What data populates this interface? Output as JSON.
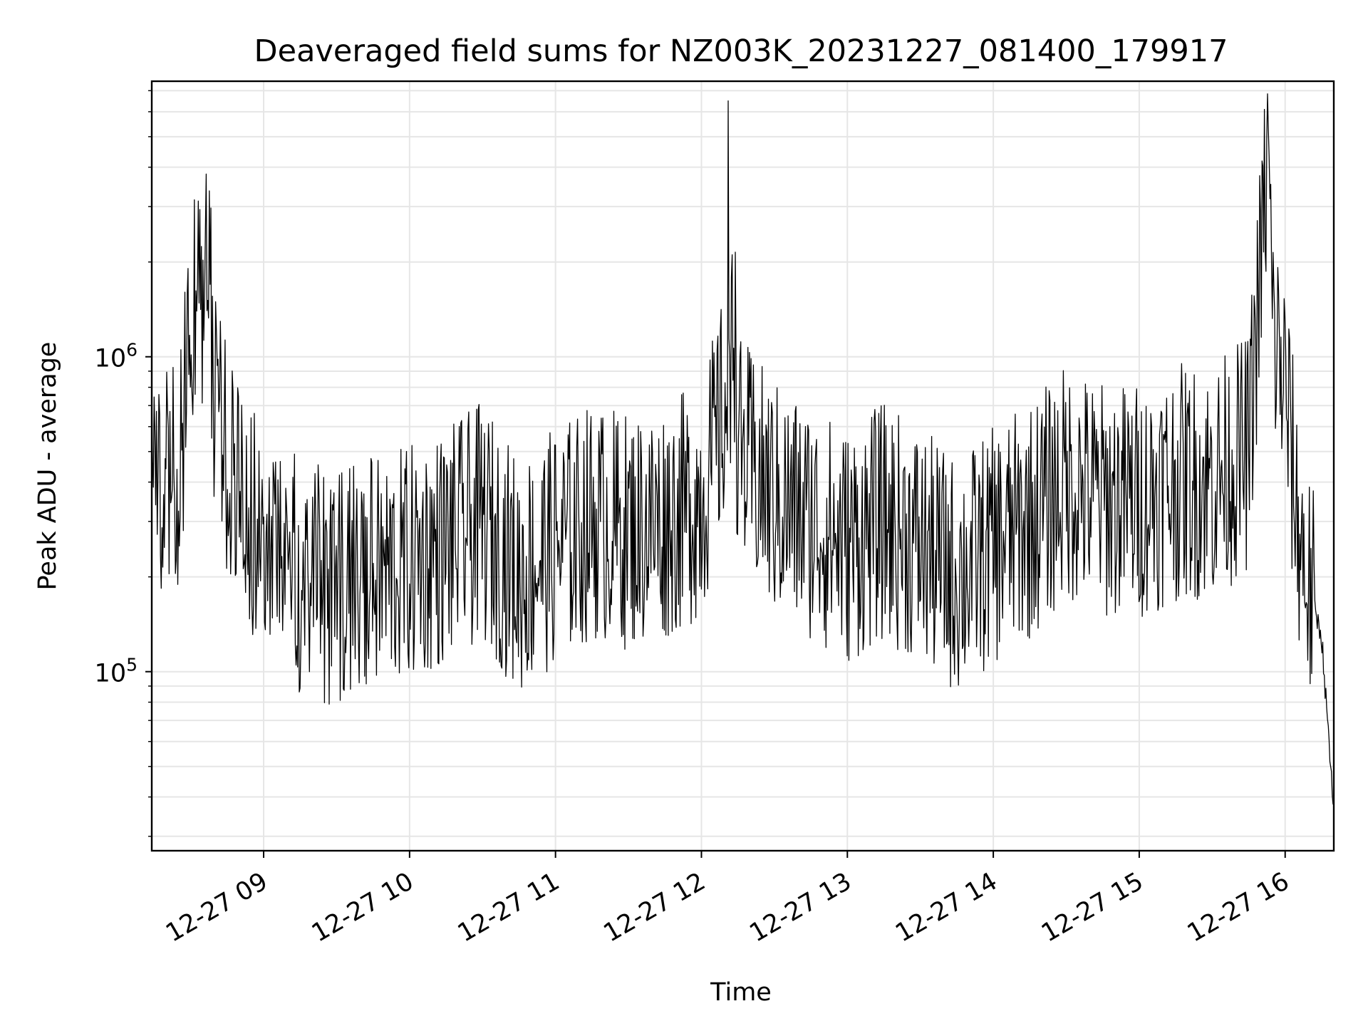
{
  "chart_data": {
    "type": "line",
    "title": "Deaveraged field sums for NZ003K_20231227_081400_179917",
    "xlabel": "Time",
    "ylabel": "Peak ADU - average",
    "y_scale": "log",
    "ylim": [
      27000,
      7500000
    ],
    "xlim": [
      "2023-12-27 08:14",
      "2023-12-27 16:20"
    ],
    "x_ticks": [
      "12-27 09",
      "12-27 10",
      "12-27 11",
      "12-27 12",
      "12-27 13",
      "12-27 14",
      "12-27 15",
      "12-27 16"
    ],
    "y_ticks": [
      {
        "base": "10",
        "exp": "5",
        "value": 100000
      },
      {
        "base": "10",
        "exp": "6",
        "value": 1000000
      }
    ],
    "grid": true,
    "line_color": "#000000",
    "grid_color": "#e6e6e6",
    "series": [
      {
        "x": [
          "2023-12-27 08:14",
          "2023-12-27 08:20",
          "2023-12-27 08:25",
          "2023-12-27 08:30",
          "2023-12-27 08:35",
          "2023-12-27 08:37",
          "2023-12-27 08:40",
          "2023-12-27 08:45",
          "2023-12-27 08:50",
          "2023-12-27 09:00",
          "2023-12-27 09:15",
          "2023-12-27 09:30",
          "2023-12-27 09:45",
          "2023-12-27 10:00",
          "2023-12-27 10:15",
          "2023-12-27 10:30",
          "2023-12-27 10:45",
          "2023-12-27 11:00",
          "2023-12-27 11:15",
          "2023-12-27 11:30",
          "2023-12-27 11:45",
          "2023-12-27 12:00",
          "2023-12-27 12:10",
          "2023-12-27 12:11",
          "2023-12-27 12:15",
          "2023-12-27 12:30",
          "2023-12-27 12:45",
          "2023-12-27 13:00",
          "2023-12-27 13:15",
          "2023-12-27 13:30",
          "2023-12-27 13:45",
          "2023-12-27 14:00",
          "2023-12-27 14:15",
          "2023-12-27 14:30",
          "2023-12-27 14:45",
          "2023-12-27 15:00",
          "2023-12-27 15:15",
          "2023-12-27 15:30",
          "2023-12-27 15:45",
          "2023-12-27 15:53",
          "2023-12-27 15:55",
          "2023-12-27 16:00",
          "2023-12-27 16:05",
          "2023-12-27 16:10",
          "2023-12-27 16:15",
          "2023-12-27 16:20"
        ],
        "y": [
          400000,
          450000,
          380000,
          1500000,
          1200000,
          2000000,
          700000,
          500000,
          350000,
          250000,
          200000,
          180000,
          200000,
          220000,
          250000,
          300000,
          200000,
          250000,
          300000,
          280000,
          300000,
          350000,
          700000,
          6500000,
          500000,
          350000,
          300000,
          250000,
          300000,
          250000,
          200000,
          250000,
          300000,
          400000,
          350000,
          350000,
          400000,
          400000,
          500000,
          4500000,
          1200000,
          800000,
          300000,
          180000,
          130000,
          35000
        ]
      }
    ]
  }
}
